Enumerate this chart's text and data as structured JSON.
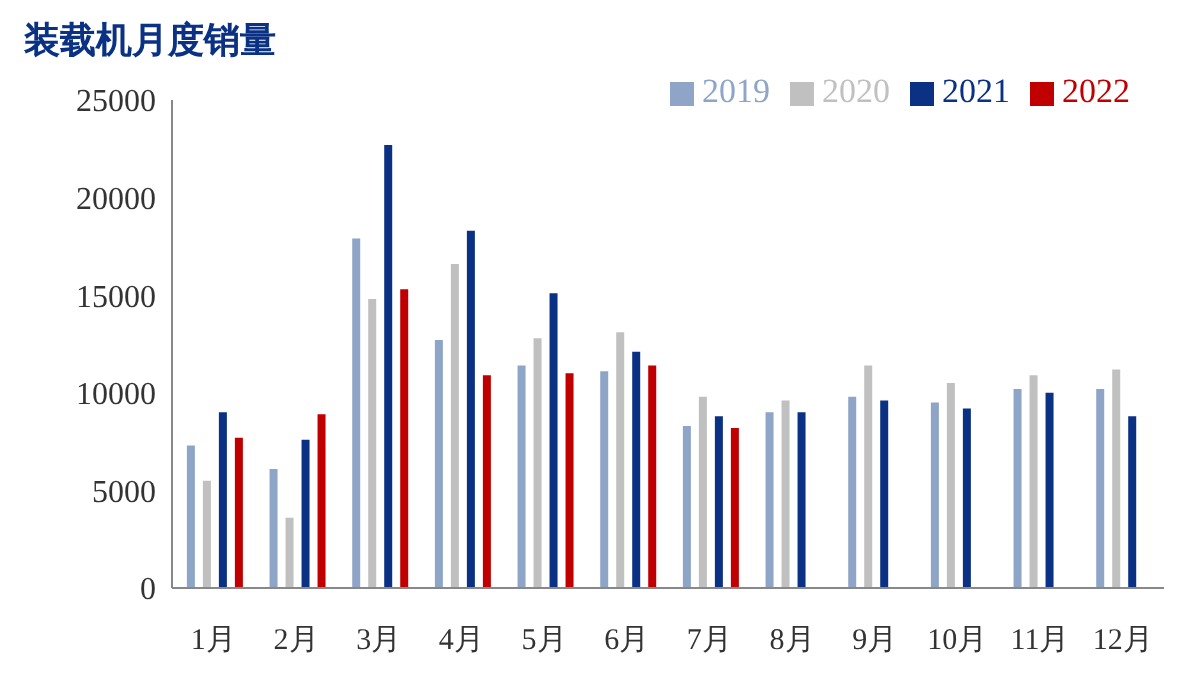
{
  "chart_data": {
    "type": "bar",
    "title": "装载机月度销量",
    "categories": [
      "1月",
      "2月",
      "3月",
      "4月",
      "5月",
      "6月",
      "7月",
      "8月",
      "9月",
      "10月",
      "11月",
      "12月"
    ],
    "series": [
      {
        "name": "2019",
        "color": "#8ea5c8",
        "values": [
          7300,
          6100,
          17900,
          12700,
          11400,
          11100,
          8300,
          9000,
          9800,
          9500,
          10200,
          10200
        ]
      },
      {
        "name": "2020",
        "color": "#c0c0c0",
        "values": [
          5500,
          3600,
          14800,
          16600,
          12800,
          13100,
          9800,
          9600,
          11400,
          10500,
          10900,
          11200
        ]
      },
      {
        "name": "2021",
        "color": "#0a3184",
        "values": [
          9000,
          7600,
          22700,
          18300,
          15100,
          12100,
          8800,
          9000,
          9600,
          9200,
          10000,
          8800
        ]
      },
      {
        "name": "2022",
        "color": "#c00000",
        "values": [
          7700,
          8900,
          15300,
          10900,
          11000,
          11400,
          8200,
          null,
          null,
          null,
          null,
          null
        ]
      }
    ],
    "ylim": [
      0,
      25000
    ],
    "yticks": [
      0,
      5000,
      10000,
      15000,
      20000,
      25000
    ],
    "grid": false,
    "legend": "top"
  }
}
